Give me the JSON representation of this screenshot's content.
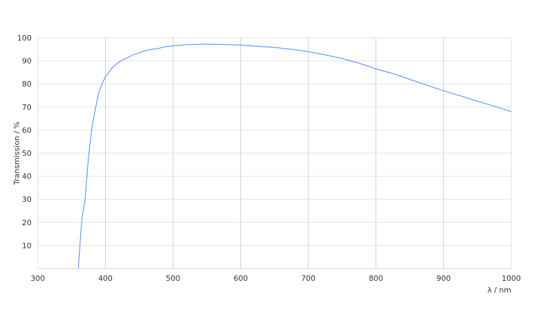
{
  "chart_data": {
    "type": "line",
    "title": "",
    "xlabel": "λ / nm",
    "ylabel": "Transmission / %",
    "xlim": [
      300,
      1000
    ],
    "ylim": [
      0,
      100
    ],
    "xticks": [
      300,
      400,
      500,
      600,
      700,
      800,
      900,
      1000
    ],
    "yticks": [
      10,
      20,
      30,
      40,
      50,
      60,
      70,
      80,
      90,
      100
    ],
    "grid": true,
    "line_color": "#4285f4",
    "series": [
      {
        "x": [
          360,
          365,
          370,
          375,
          380,
          385,
          390,
          395,
          400,
          405,
          410,
          420,
          430,
          440,
          450,
          460,
          470,
          480,
          490,
          500,
          520,
          550,
          575,
          600,
          625,
          650,
          675,
          700,
          725,
          750,
          775,
          800,
          825,
          850,
          875,
          900,
          925,
          950,
          975,
          1000
        ],
        "y": [
          0,
          21,
          30,
          48,
          61,
          69,
          76,
          80,
          83,
          85,
          87,
          89.5,
          91,
          92.5,
          93.5,
          94.5,
          95,
          95.5,
          96.2,
          96.5,
          97,
          97.3,
          97.1,
          96.8,
          96.3,
          95.8,
          95,
          94,
          92.6,
          91,
          89,
          86.5,
          84.5,
          82,
          79.5,
          77,
          74.8,
          72.5,
          70.3,
          68
        ]
      }
    ]
  }
}
